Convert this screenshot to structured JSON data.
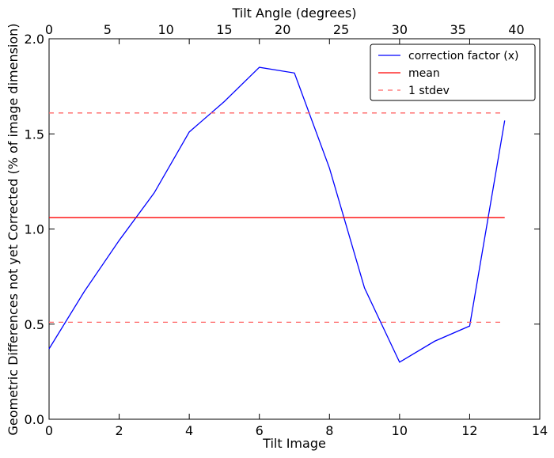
{
  "chart_data": {
    "type": "line",
    "xlabel": "Tilt Image",
    "ylabel": "Geometric Differences not yet Corrected (% of image dimension)",
    "top_xlabel": "Tilt Angle (degrees)",
    "xlim": [
      0,
      14
    ],
    "ylim": [
      0,
      2.0
    ],
    "top_xlim": [
      0,
      42
    ],
    "x_ticks": [
      0,
      2,
      4,
      6,
      8,
      10,
      12,
      14
    ],
    "y_ticks": [
      0.0,
      0.5,
      1.0,
      1.5,
      2.0
    ],
    "top_x_ticks": [
      0,
      5,
      10,
      15,
      20,
      25,
      30,
      35,
      40
    ],
    "x_tick_labels": [
      "0",
      "2",
      "4",
      "6",
      "8",
      "10",
      "12",
      "14"
    ],
    "y_tick_labels": [
      "0.0",
      "0.5",
      "1.0",
      "1.5",
      "2.0"
    ],
    "top_x_tick_labels": [
      "0",
      "5",
      "10",
      "15",
      "20",
      "25",
      "30",
      "35",
      "40"
    ],
    "legend_position": "top-right",
    "grid": false,
    "series": [
      {
        "name": "correction factor (x)",
        "color": "#0000ff",
        "style": "solid",
        "x": [
          0,
          1,
          2,
          3,
          4,
          5,
          6,
          7,
          8,
          9,
          10,
          11,
          12,
          13
        ],
        "values": [
          0.37,
          0.67,
          0.94,
          1.19,
          1.51,
          1.67,
          1.85,
          1.82,
          1.32,
          0.69,
          0.3,
          0.41,
          0.49,
          1.57
        ]
      },
      {
        "name": "mean",
        "color": "#ff0000",
        "style": "solid",
        "x": [
          0,
          13
        ],
        "values": [
          1.06,
          1.06
        ]
      },
      {
        "name": "1 stdev",
        "color": "#ff6666",
        "style": "dashed",
        "x": [
          0,
          13
        ],
        "values": [
          1.61,
          1.61
        ],
        "lower_values": [
          0.51,
          0.51
        ]
      }
    ]
  }
}
